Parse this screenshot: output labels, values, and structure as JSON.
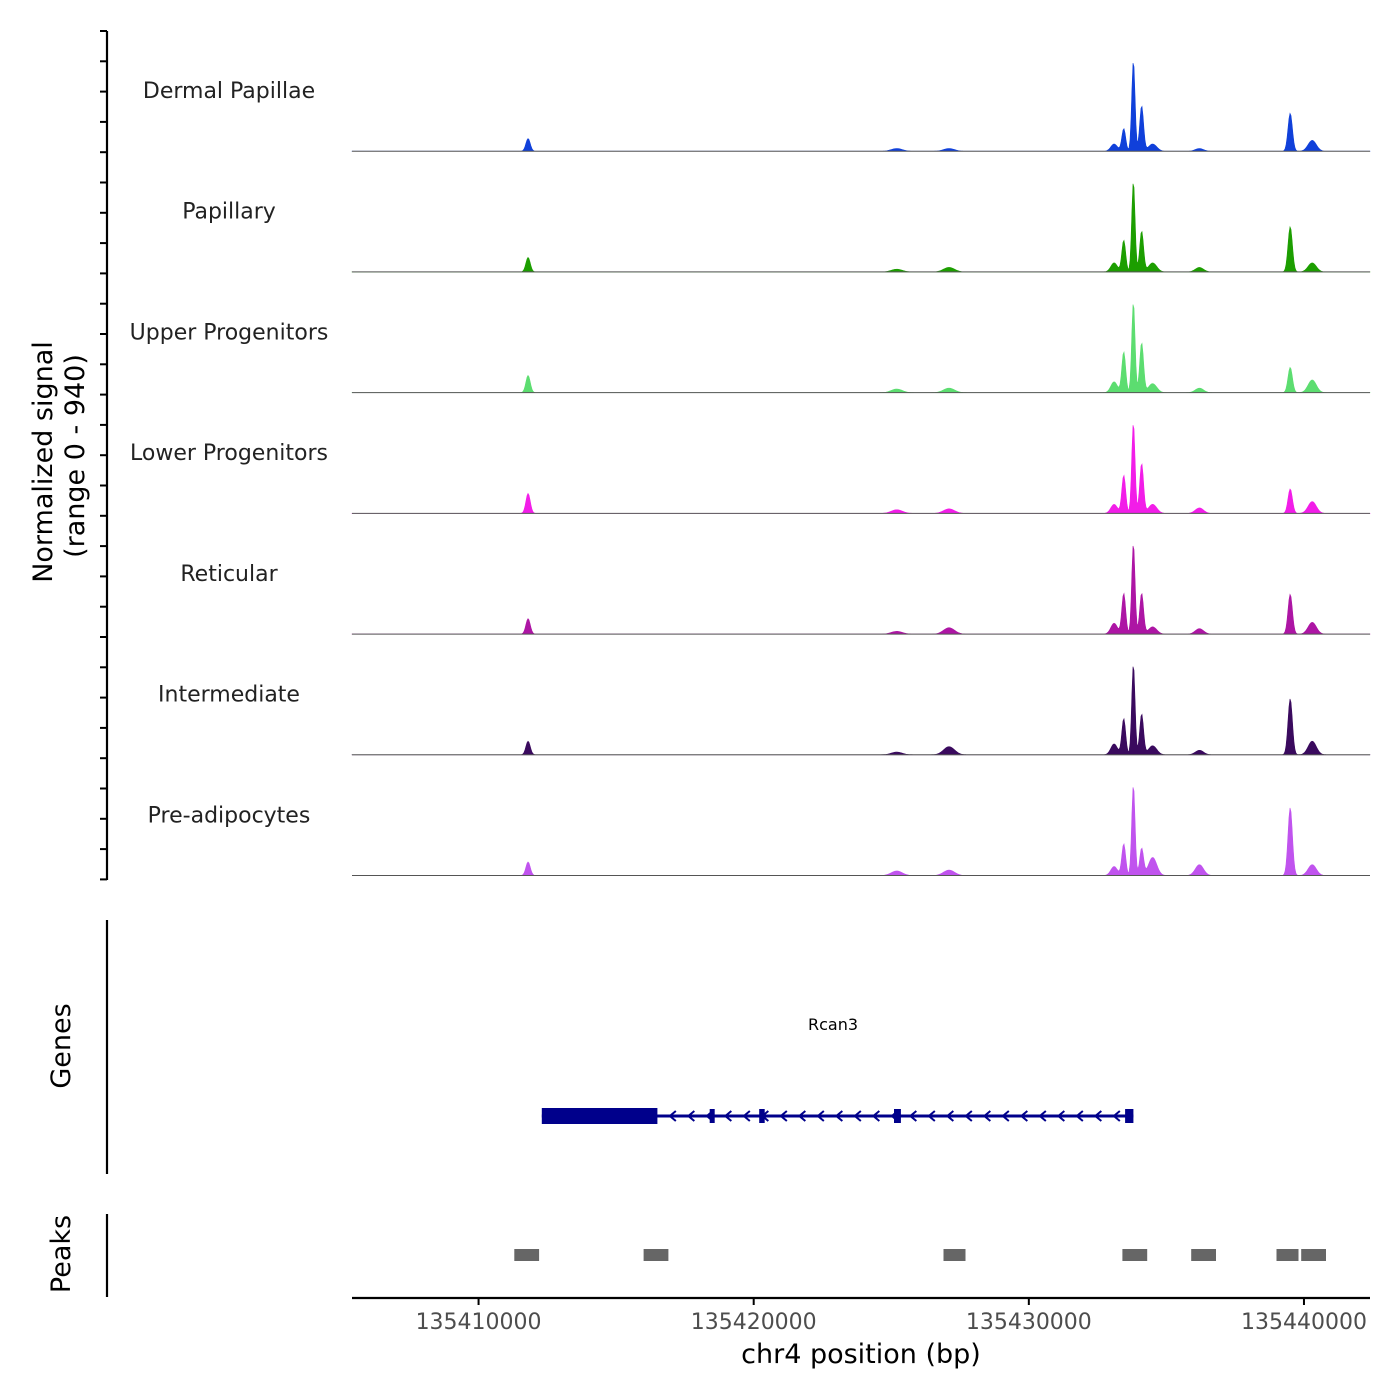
{
  "chart_data": {
    "type": "area",
    "title": "",
    "ylabel_line1": "Normalized signal",
    "ylabel_line2": "(range 0 - 940)",
    "genes_label": "Genes",
    "peaks_label": "Peaks",
    "xlabel": "chr4 position (bp)",
    "xlim": [
      135405400,
      135442400
    ],
    "ylim": [
      0,
      940
    ],
    "x_ticks": [
      135410000,
      135420000,
      135430000,
      135440000
    ],
    "x_tick_labels": [
      "135410000",
      "135420000",
      "135430000",
      "135440000"
    ],
    "peak_bins": [
      [
        135411800,
        0.45,
        80
      ],
      [
        135433100,
        0.45,
        120
      ],
      [
        135433450,
        0.95,
        70
      ],
      [
        135433800,
        0.95,
        60
      ],
      [
        135434100,
        0.45,
        70
      ],
      [
        135434500,
        0.2,
        150
      ],
      [
        135439500,
        0.75,
        80
      ],
      [
        135440300,
        0.2,
        150
      ],
      [
        135436200,
        0.08,
        150
      ],
      [
        135427100,
        0.08,
        200
      ],
      [
        135425200,
        0.04,
        200
      ]
    ],
    "series": [
      {
        "name": "Dermal Papillae",
        "color": "#1040DA",
        "heights": [
          0.14,
          0.08,
          0.25,
          1.0,
          0.5,
          0.08,
          0.42,
          0.12,
          0.03,
          0.03,
          0.03
        ]
      },
      {
        "name": "Papillary",
        "color": "#1C9E00",
        "heights": [
          0.16,
          0.1,
          0.35,
          1.0,
          0.45,
          0.1,
          0.5,
          0.1,
          0.05,
          0.05,
          0.03
        ]
      },
      {
        "name": "Upper Progenitors",
        "color": "#5CDD70",
        "heights": [
          0.19,
          0.12,
          0.45,
          1.0,
          0.55,
          0.1,
          0.28,
          0.14,
          0.05,
          0.05,
          0.04
        ]
      },
      {
        "name": "Lower Progenitors",
        "color": "#F21DE8",
        "heights": [
          0.22,
          0.1,
          0.42,
          1.0,
          0.55,
          0.1,
          0.27,
          0.13,
          0.06,
          0.05,
          0.04
        ]
      },
      {
        "name": "Reticular",
        "color": "#AD15A4",
        "heights": [
          0.17,
          0.12,
          0.45,
          1.0,
          0.45,
          0.08,
          0.44,
          0.13,
          0.06,
          0.07,
          0.03
        ]
      },
      {
        "name": "Intermediate",
        "color": "#3A0A5E",
        "heights": [
          0.15,
          0.12,
          0.4,
          1.0,
          0.45,
          0.1,
          0.62,
          0.15,
          0.05,
          0.09,
          0.03
        ]
      },
      {
        "name": "Pre-adipocytes",
        "color": "#C053EE",
        "heights": [
          0.15,
          0.1,
          0.35,
          1.0,
          0.3,
          0.2,
          0.75,
          0.12,
          0.12,
          0.06,
          0.05
        ]
      }
    ],
    "gene": {
      "name": "Rcan3",
      "start": 135412300,
      "end": 135433800,
      "strand": "-",
      "color": "#00008B",
      "exons": [
        [
          135412300,
          135416500
        ],
        [
          135418400,
          135418550
        ],
        [
          135420200,
          135420400
        ],
        [
          135425100,
          135425350
        ],
        [
          135433500,
          135433800
        ]
      ]
    },
    "peaks": [
      [
        135411300,
        135412200
      ],
      [
        135416000,
        135416900
      ],
      [
        135426900,
        135427700
      ],
      [
        135433400,
        135434300
      ],
      [
        135435900,
        135436800
      ],
      [
        135439000,
        135439800
      ],
      [
        135439900,
        135440800
      ]
    ],
    "peak_color": "#666666"
  }
}
